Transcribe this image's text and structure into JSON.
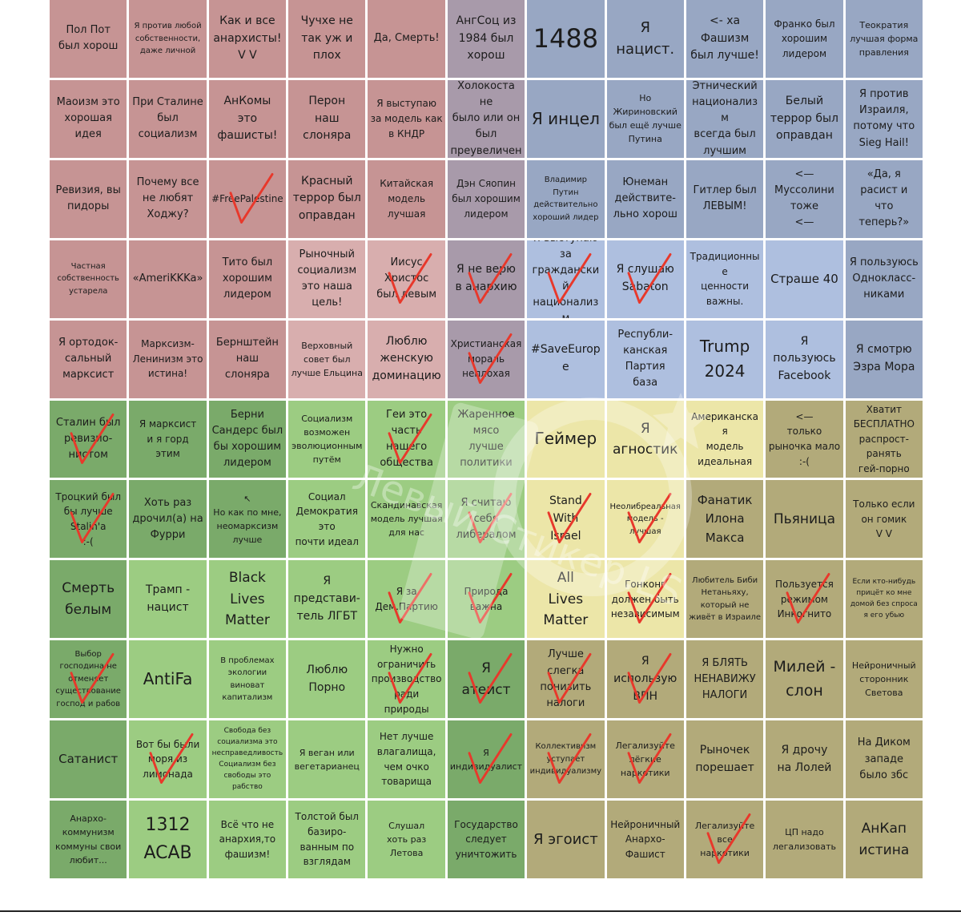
{
  "colors": {
    "red": "#c69494",
    "red_light": "#d8aeae",
    "mauve": "#a89aaa",
    "blue": "#98a7c3",
    "blue_light": "#aebfdf",
    "green": "#7aaa6a",
    "green_light": "#9ccc82",
    "yellow": "#ece6a8",
    "olive": "#b2aa7a",
    "check": "#e8382b"
  },
  "watermark": "Левый Стикер.LS",
  "grid": {
    "rows": [
      [
        {
          "text": "Пол Пот\nбыл хорош",
          "color": "red",
          "size": 13
        },
        {
          "text": "Я против любой\nсобственности,\nдаже личной",
          "color": "red",
          "size": 10
        },
        {
          "text": "Как и все\nанархисты!\nV V",
          "color": "red",
          "size": 14
        },
        {
          "text": "Чучхе не\nтак уж и\nплох",
          "color": "red",
          "size": 14
        },
        {
          "text": "Да, Смерть!",
          "color": "red",
          "size": 13
        },
        {
          "text": "АнгСоц из\n1984 был\nхорош",
          "color": "mauve",
          "size": 14
        },
        {
          "text": "1488",
          "color": "blue",
          "size": 32
        },
        {
          "text": "Я\nнацист.",
          "color": "blue",
          "size": 18
        },
        {
          "text": "<- ха\nФашизм\nбыл лучше!",
          "color": "blue",
          "size": 14
        },
        {
          "text": "Франко был\nхорошим\nлидером",
          "color": "blue",
          "size": 12
        },
        {
          "text": "Теократия\nлучшая форма\nправления",
          "color": "blue",
          "size": 11
        }
      ],
      [
        {
          "text": "Маоизм это\nхорошая\nидея",
          "color": "red",
          "size": 13
        },
        {
          "text": "При Сталине\nбыл\nсоциализм",
          "color": "red",
          "size": 13
        },
        {
          "text": "АнКомы\nэто\nфашисты!",
          "color": "red",
          "size": 14
        },
        {
          "text": "Перон\nнаш\nслоняра",
          "color": "red",
          "size": 14
        },
        {
          "text": "Я выступаю\nза модель как\nв КНДР",
          "color": "red",
          "size": 12
        },
        {
          "text": "Холокоста не\nбыло или он\nбыл\nпреувеличен",
          "color": "mauve",
          "size": 13
        },
        {
          "text": "Я инцел",
          "color": "blue",
          "size": 20
        },
        {
          "text": "Но\nЖириновский\nбыл ещё лучше\nПутина",
          "color": "blue",
          "size": 11
        },
        {
          "text": "Этнический\nнационализм\nвсегда был\nлучшим",
          "color": "blue",
          "size": 13
        },
        {
          "text": "Белый\nтеррор был\nоправдан",
          "color": "blue",
          "size": 14
        },
        {
          "text": "Я против\nИзраиля,\nпотому что\nSieg Hail!",
          "color": "blue",
          "size": 13
        }
      ],
      [
        {
          "text": "Ревизия, вы\nпидоры",
          "color": "red",
          "size": 13
        },
        {
          "text": "Почему все\nне любят\nХоджу?",
          "color": "red",
          "size": 13
        },
        {
          "text": "#FreePalestine",
          "color": "red",
          "size": 12
        },
        {
          "text": "Красный\nтеррор был\nоправдан",
          "color": "red",
          "size": 14
        },
        {
          "text": "Китайская\nмодель\nлучшая",
          "color": "red",
          "size": 12
        },
        {
          "text": "Дэн Сяопин\nбыл хорошим\nлидером",
          "color": "mauve",
          "size": 12
        },
        {
          "text": "Владимир\nПутин\nдействительно\nхороший лидер",
          "color": "blue",
          "size": 10
        },
        {
          "text": "Юнеман\nдействите-\nльно хорош",
          "color": "blue",
          "size": 13
        },
        {
          "text": "Гитлер был\nЛЕВЫМ!",
          "color": "blue",
          "size": 13
        },
        {
          "text": "<—\nМуссолини\nтоже\n<—",
          "color": "blue",
          "size": 13
        },
        {
          "text": "«Да, я\nрасист и\nчто\nтеперь?»",
          "color": "blue",
          "size": 13
        }
      ],
      [
        {
          "text": "Частная\nсобственность\nустарела",
          "color": "red",
          "size": 10
        },
        {
          "text": "«AmeriKKKa»",
          "color": "red",
          "size": 13
        },
        {
          "text": "Тито был\nхорошим\nлидером",
          "color": "red",
          "size": 13
        },
        {
          "text": "Рыночный\nсоциализм\nэто наша\nцель!",
          "color": "red_light",
          "size": 13
        },
        {
          "text": "Иисус\nХристос\nбыл левым",
          "color": "red_light",
          "size": 13
        },
        {
          "text": "Я не верю\nв анархию",
          "color": "mauve",
          "size": 14
        },
        {
          "text": "Я выступаю\nза\nгражданский\nнационализм",
          "color": "blue_light",
          "size": 13
        },
        {
          "text": "Я слушаю\nSabaton",
          "color": "blue_light",
          "size": 14
        },
        {
          "text": "Традиционные\nценности\nважны.",
          "color": "blue_light",
          "size": 12
        },
        {
          "text": "Страше 40",
          "color": "blue_light",
          "size": 15
        },
        {
          "text": "Я пользуюсь\nОднокласс-\nниками",
          "color": "blue",
          "size": 13
        }
      ],
      [
        {
          "text": "Я ортодок-\nсальный\nмарксист",
          "color": "red",
          "size": 13
        },
        {
          "text": "Марксизм-\nЛенинизм это\nистина!",
          "color": "red",
          "size": 12
        },
        {
          "text": "Бернштейн\nнаш\nслоняра",
          "color": "red",
          "size": 13
        },
        {
          "text": "Верховный\nсовет был\nлучше Ельцина",
          "color": "red_light",
          "size": 11
        },
        {
          "text": "Люблю\nженскую\nдоминацию",
          "color": "red_light",
          "size": 14
        },
        {
          "text": "Христианская\nмораль\nнеплохая",
          "color": "mauve",
          "size": 12
        },
        {
          "text": "#SaveEurope",
          "color": "blue_light",
          "size": 14
        },
        {
          "text": "Республи-\nканская\nПартия\nбаза",
          "color": "blue_light",
          "size": 13
        },
        {
          "text": "Trump\n2024",
          "color": "blue_light",
          "size": 20
        },
        {
          "text": "Я пользуюсь\nFacebook",
          "color": "blue_light",
          "size": 14
        },
        {
          "text": "Я смотрю\nЭзра Мора",
          "color": "blue",
          "size": 14
        }
      ],
      [
        {
          "text": "Сталин был\nревизио-\nнистом",
          "color": "green",
          "size": 13
        },
        {
          "text": "Я марксист\nи я горд\nэтим",
          "color": "green",
          "size": 12
        },
        {
          "text": "Берни\nСандерс был\nбы хорошим\nлидером",
          "color": "green",
          "size": 13
        },
        {
          "text": "Социализм\nвозможен\nэволюционным\nпутём",
          "color": "green_light",
          "size": 11
        },
        {
          "text": "Геи это\nчасть\nнашего\nобщества",
          "color": "green_light",
          "size": 13
        },
        {
          "text": "Жаренное\nмясо\nлучше\nполитики",
          "color": "green_light",
          "size": 13
        },
        {
          "text": "Геймер",
          "color": "yellow",
          "size": 20
        },
        {
          "text": "Я\nагностик",
          "color": "yellow",
          "size": 17
        },
        {
          "text": "Американская\nмодель\nидеальная",
          "color": "yellow",
          "size": 12
        },
        {
          "text": "<—\nтолько\nрыночка мало\n:-(",
          "color": "olive",
          "size": 12
        },
        {
          "text": "Хватит\nБЕСПЛАТНО\nраспрост-\nранять\nгей-порно",
          "color": "olive",
          "size": 12
        }
      ],
      [
        {
          "text": "Троцкий был\nбы лучше\nStalin'a\n:-(",
          "color": "green",
          "size": 12
        },
        {
          "text": "Хоть раз\nдрочил(а) на\nФурри",
          "color": "green",
          "size": 13
        },
        {
          "text": "↖\nНо как по мне,\nнеомарксизм\nлучше",
          "color": "green",
          "size": 11
        },
        {
          "text": "Социал\nДемократия\nэто\nпочти идеал",
          "color": "green_light",
          "size": 12
        },
        {
          "text": "Скандинавская\nмодель лучшая\nдля нас",
          "color": "green_light",
          "size": 11
        },
        {
          "text": "Я считаю\nсебя\nлибералом",
          "color": "green_light",
          "size": 13
        },
        {
          "text": "Stand\nWith\nIsrael",
          "color": "yellow",
          "size": 14
        },
        {
          "text": "Неолибреальная\nмодель -\nлучшая",
          "color": "yellow",
          "size": 10
        },
        {
          "text": "Фанатик\nИлона\nМакса",
          "color": "olive",
          "size": 15
        },
        {
          "text": "Пьяница",
          "color": "olive",
          "size": 17
        },
        {
          "text": "Только если\nон гомик\nV V",
          "color": "olive",
          "size": 12
        }
      ],
      [
        {
          "text": "Смерть\nбелым",
          "color": "green",
          "size": 17
        },
        {
          "text": "Трамп -\nнацист",
          "color": "green_light",
          "size": 14
        },
        {
          "text": "Black\nLives\nMatter",
          "color": "green_light",
          "size": 17
        },
        {
          "text": "Я\nпредстави-\nтель ЛГБТ",
          "color": "green_light",
          "size": 14
        },
        {
          "text": "Я за\nДем.Партию",
          "color": "green_light",
          "size": 12
        },
        {
          "text": "Природа\nважна",
          "color": "green_light",
          "size": 12
        },
        {
          "text": "All\nLives\nMatter",
          "color": "yellow",
          "size": 17
        },
        {
          "text": "Гонконг\nдолжен быть\nнезависимым",
          "color": "yellow",
          "size": 12
        },
        {
          "text": "Любитель Биби\nНетаньяху,\nкоторый не\nживёт в Израиле",
          "color": "olive",
          "size": 10
        },
        {
          "text": "Пользуется\nрежимом\nИнкогнито",
          "color": "olive",
          "size": 12
        },
        {
          "text": "Если кто-нибудь\nприцёт ко мне\nдомой без спроса\nя его убью",
          "color": "olive",
          "size": 9
        }
      ],
      [
        {
          "text": "Выбор\nгосподина не\nотменяет\nсуществование\nгоспод и рабов",
          "color": "green",
          "size": 10
        },
        {
          "text": "AntiFa",
          "color": "green_light",
          "size": 20
        },
        {
          "text": "В проблемах\nэкологии\nвиноват\nкапитализм",
          "color": "green_light",
          "size": 10
        },
        {
          "text": "Люблю\nПорно",
          "color": "green_light",
          "size": 14
        },
        {
          "text": "Нужно\nограничить\nпроизводство\nради природы",
          "color": "green_light",
          "size": 12
        },
        {
          "text": "Я\nатеист",
          "color": "green",
          "size": 17
        },
        {
          "text": "Лучше\nслегка\nпонизить\nналоги",
          "color": "olive",
          "size": 13
        },
        {
          "text": "Я\nиспользую\nВПН",
          "color": "olive",
          "size": 14
        },
        {
          "text": "Я БЛЯТЬ\nНЕНАВИЖУ\nНАЛОГИ",
          "color": "olive",
          "size": 13
        },
        {
          "text": "Милей -\nслон",
          "color": "olive",
          "size": 19
        },
        {
          "text": "Нейроничный\nсторонник\nСветова",
          "color": "olive",
          "size": 11
        }
      ],
      [
        {
          "text": "Сатанист",
          "color": "green",
          "size": 15
        },
        {
          "text": "Вот бы были\nморя из\nлимонада",
          "color": "green_light",
          "size": 12
        },
        {
          "text": "Свобода без\nсоциализма это\nнесправедливость\nСоциализм без\nсвободы это\nрабство",
          "color": "green_light",
          "size": 9
        },
        {
          "text": "Я веган или\nвегетарианец",
          "color": "green_light",
          "size": 11
        },
        {
          "text": "Нет лучше\nвлагалища,\nчем очко\nтоварища",
          "color": "green_light",
          "size": 12
        },
        {
          "text": "Я\nиндивидуалист",
          "color": "green",
          "size": 11
        },
        {
          "text": "Коллективизм\nуступает\nиндивидуализму",
          "color": "olive",
          "size": 10
        },
        {
          "text": "Легализуйте\nлёгкие\nнаркотики",
          "color": "olive",
          "size": 11
        },
        {
          "text": "Рыночек\nпорешает",
          "color": "olive",
          "size": 14
        },
        {
          "text": "Я дрочу\nна Лолей",
          "color": "olive",
          "size": 14
        },
        {
          "text": "На Диком\nзападе\nбыло збс",
          "color": "olive",
          "size": 13
        }
      ],
      [
        {
          "text": "Анархо-\nкоммунизм\nкоммуны свои\nлюбит...",
          "color": "green",
          "size": 11
        },
        {
          "text": "1312\nACAB",
          "color": "green_light",
          "size": 22
        },
        {
          "text": "Всё что не\nанархия,то\nфашизм!",
          "color": "green_light",
          "size": 12
        },
        {
          "text": "Толстой был\nбазиро-\nванным по\nвзглядам",
          "color": "green_light",
          "size": 12
        },
        {
          "text": "Слушал\nхоть раз\nЛетова",
          "color": "green_light",
          "size": 11
        },
        {
          "text": "Государство\nследует\nуничтожить",
          "color": "green",
          "size": 12
        },
        {
          "text": "Я эгоист",
          "color": "olive",
          "size": 18
        },
        {
          "text": "Нейроничный\nАнархо-\nФашист",
          "color": "olive",
          "size": 12
        },
        {
          "text": "Легализуйте\nвсе\nнаркотики",
          "color": "olive",
          "size": 11
        },
        {
          "text": "ЦП надо\nлегализовать",
          "color": "olive",
          "size": 11
        },
        {
          "text": "АнКап\nистина",
          "color": "olive",
          "size": 17
        }
      ]
    ],
    "checked": [
      [
        2,
        2
      ],
      [
        3,
        4
      ],
      [
        3,
        5
      ],
      [
        3,
        6
      ],
      [
        3,
        7
      ],
      [
        4,
        5
      ],
      [
        5,
        0
      ],
      [
        5,
        4
      ],
      [
        6,
        0
      ],
      [
        6,
        5
      ],
      [
        6,
        6
      ],
      [
        6,
        7
      ],
      [
        7,
        4
      ],
      [
        7,
        5
      ],
      [
        7,
        7
      ],
      [
        7,
        9
      ],
      [
        8,
        0
      ],
      [
        8,
        4
      ],
      [
        8,
        5
      ],
      [
        8,
        6
      ],
      [
        8,
        7
      ],
      [
        9,
        1
      ],
      [
        9,
        5
      ],
      [
        9,
        6
      ],
      [
        9,
        7
      ],
      [
        10,
        8
      ]
    ]
  }
}
